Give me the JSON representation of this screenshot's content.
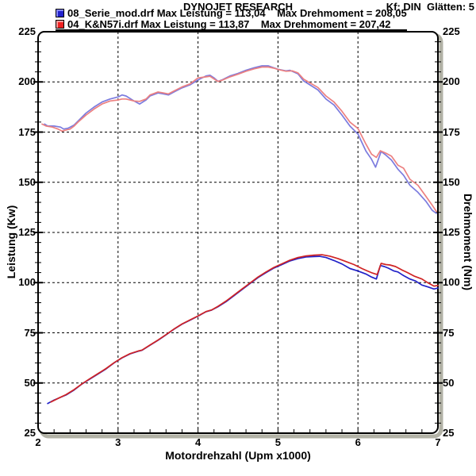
{
  "header": {
    "title": "DYNOJET RESEARCH",
    "settings": "Kf: DIN  Glätten: 5"
  },
  "legend": {
    "entries": [
      {
        "label": "08_Serie_mod.drf Max Leistung = 113,04    Max Drehmoment = 208,05",
        "swatch_color": "#2222cc",
        "underlined": false
      },
      {
        "label": "04_K&N57i.drf Max Leistung = 113,87    Max Drehmoment = 207,42",
        "swatch_color": "#ee2222",
        "underlined": true
      }
    ]
  },
  "colors": {
    "background": "#ffffff",
    "frame": "#000000",
    "grid": "#000000",
    "shadow": "#b2b2a6",
    "power_blue": "#2121c8",
    "power_red": "#d02424",
    "torque_blue": "#7b7bde",
    "torque_red": "#ec8080"
  },
  "chart_data": {
    "type": "line",
    "title": "DYNOJET RESEARCH",
    "xlabel": "Motordrehzahl (Upm x1000)",
    "ylabel_left": "Leistung (Kw)",
    "ylabel_right": "Drehmoment (Nm)",
    "xlim": [
      2,
      7
    ],
    "ylim": [
      25,
      225
    ],
    "xticks": [
      2,
      3,
      4,
      5,
      6,
      7
    ],
    "yticks": [
      25,
      50,
      75,
      100,
      125,
      150,
      175,
      200,
      225
    ],
    "x_minor_step": 0.2,
    "y_minor_step": 5,
    "grid": "dashed",
    "legend_position": "top-left",
    "series": [
      {
        "name": "08_Serie_mod.drf Drehmoment",
        "unit": "Nm",
        "max": "208,05",
        "color_key": "torque_blue",
        "points": [
          [
            2.08,
            179
          ],
          [
            2.12,
            178
          ],
          [
            2.2,
            178
          ],
          [
            2.28,
            177.5
          ],
          [
            2.32,
            176.5
          ],
          [
            2.38,
            177
          ],
          [
            2.45,
            178.5
          ],
          [
            2.5,
            180.5
          ],
          [
            2.6,
            184.5
          ],
          [
            2.7,
            187.5
          ],
          [
            2.8,
            190
          ],
          [
            2.9,
            191.5
          ],
          [
            3.0,
            192.5
          ],
          [
            3.05,
            193.5
          ],
          [
            3.1,
            193
          ],
          [
            3.2,
            190.5
          ],
          [
            3.27,
            189
          ],
          [
            3.35,
            191
          ],
          [
            3.4,
            193
          ],
          [
            3.5,
            194.5
          ],
          [
            3.57,
            194
          ],
          [
            3.63,
            193.5
          ],
          [
            3.7,
            195
          ],
          [
            3.8,
            197
          ],
          [
            3.9,
            198.5
          ],
          [
            4.0,
            201
          ],
          [
            4.1,
            203
          ],
          [
            4.15,
            203.3
          ],
          [
            4.2,
            202
          ],
          [
            4.25,
            200.3
          ],
          [
            4.3,
            201
          ],
          [
            4.4,
            203
          ],
          [
            4.5,
            204.2
          ],
          [
            4.6,
            205.8
          ],
          [
            4.7,
            207
          ],
          [
            4.8,
            208
          ],
          [
            4.88,
            208
          ],
          [
            4.95,
            207
          ],
          [
            5.0,
            206.3
          ],
          [
            5.1,
            205.5
          ],
          [
            5.15,
            205.8
          ],
          [
            5.25,
            204
          ],
          [
            5.32,
            200.5
          ],
          [
            5.4,
            198.5
          ],
          [
            5.5,
            196
          ],
          [
            5.6,
            191.5
          ],
          [
            5.7,
            188.5
          ],
          [
            5.8,
            183.5
          ],
          [
            5.9,
            178
          ],
          [
            6.0,
            174
          ],
          [
            6.1,
            165.5
          ],
          [
            6.17,
            161.5
          ],
          [
            6.22,
            157.5
          ],
          [
            6.29,
            165.3
          ],
          [
            6.35,
            163.5
          ],
          [
            6.42,
            161
          ],
          [
            6.5,
            156.5
          ],
          [
            6.57,
            153.5
          ],
          [
            6.65,
            148.5
          ],
          [
            6.75,
            145
          ],
          [
            6.85,
            140.5
          ],
          [
            6.93,
            136
          ],
          [
            6.98,
            134.5
          ]
        ]
      },
      {
        "name": "04_K&N57i.drf Drehmoment",
        "unit": "Nm",
        "max": "207,42",
        "color_key": "torque_red",
        "points": [
          [
            2.05,
            179
          ],
          [
            2.1,
            178
          ],
          [
            2.18,
            177.5
          ],
          [
            2.25,
            176.5
          ],
          [
            2.3,
            175.5
          ],
          [
            2.4,
            176.5
          ],
          [
            2.45,
            178
          ],
          [
            2.5,
            180
          ],
          [
            2.6,
            183.5
          ],
          [
            2.7,
            186.5
          ],
          [
            2.8,
            189
          ],
          [
            2.9,
            190.5
          ],
          [
            3.0,
            191
          ],
          [
            3.05,
            191.5
          ],
          [
            3.1,
            191.5
          ],
          [
            3.2,
            190.5
          ],
          [
            3.27,
            190.3
          ],
          [
            3.35,
            191.5
          ],
          [
            3.4,
            193.5
          ],
          [
            3.5,
            195
          ],
          [
            3.57,
            194.5
          ],
          [
            3.63,
            194
          ],
          [
            3.7,
            195.5
          ],
          [
            3.8,
            197.5
          ],
          [
            3.9,
            199
          ],
          [
            4.0,
            202
          ],
          [
            4.1,
            202.5
          ],
          [
            4.15,
            202.8
          ],
          [
            4.2,
            201.5
          ],
          [
            4.25,
            200.2
          ],
          [
            4.3,
            200.8
          ],
          [
            4.4,
            202.5
          ],
          [
            4.5,
            203.8
          ],
          [
            4.6,
            205.3
          ],
          [
            4.7,
            206.5
          ],
          [
            4.8,
            207.4
          ],
          [
            4.88,
            207.4
          ],
          [
            4.95,
            206.8
          ],
          [
            5.0,
            206.2
          ],
          [
            5.1,
            205.3
          ],
          [
            5.18,
            205.5
          ],
          [
            5.25,
            204.5
          ],
          [
            5.32,
            201.4
          ],
          [
            5.4,
            199.5
          ],
          [
            5.5,
            197.2
          ],
          [
            5.6,
            193
          ],
          [
            5.7,
            190
          ],
          [
            5.8,
            185.4
          ],
          [
            5.9,
            180
          ],
          [
            6.0,
            176.8
          ],
          [
            6.1,
            169
          ],
          [
            6.17,
            164
          ],
          [
            6.23,
            162.4
          ],
          [
            6.28,
            165.7
          ],
          [
            6.35,
            164.5
          ],
          [
            6.42,
            163
          ],
          [
            6.5,
            158.5
          ],
          [
            6.57,
            157
          ],
          [
            6.65,
            151.5
          ],
          [
            6.75,
            148.5
          ],
          [
            6.85,
            143
          ],
          [
            6.93,
            138.5
          ],
          [
            6.98,
            135.5
          ]
        ]
      },
      {
        "name": "08_Serie_mod.drf Leistung",
        "unit": "Kw",
        "max": "113,04",
        "color_key": "power_blue",
        "points": [
          [
            2.12,
            39.8
          ],
          [
            2.2,
            41.5
          ],
          [
            2.3,
            43.2
          ],
          [
            2.35,
            44
          ],
          [
            2.45,
            46.5
          ],
          [
            2.55,
            49.5
          ],
          [
            2.65,
            52
          ],
          [
            2.75,
            54.5
          ],
          [
            2.85,
            57
          ],
          [
            2.95,
            60
          ],
          [
            3.05,
            62.5
          ],
          [
            3.15,
            64.5
          ],
          [
            3.25,
            65.8
          ],
          [
            3.3,
            66.3
          ],
          [
            3.4,
            68.8
          ],
          [
            3.5,
            71.3
          ],
          [
            3.6,
            74
          ],
          [
            3.7,
            76.8
          ],
          [
            3.8,
            79.3
          ],
          [
            3.9,
            81.3
          ],
          [
            4.0,
            83.3
          ],
          [
            4.1,
            85.5
          ],
          [
            4.17,
            86.3
          ],
          [
            4.25,
            88
          ],
          [
            4.35,
            90.5
          ],
          [
            4.45,
            93.5
          ],
          [
            4.55,
            96.5
          ],
          [
            4.65,
            99.5
          ],
          [
            4.75,
            102.5
          ],
          [
            4.85,
            105
          ],
          [
            4.95,
            107.3
          ],
          [
            5.05,
            109
          ],
          [
            5.15,
            110.8
          ],
          [
            5.25,
            112
          ],
          [
            5.35,
            112.8
          ],
          [
            5.45,
            113
          ],
          [
            5.52,
            113.1
          ],
          [
            5.6,
            112.5
          ],
          [
            5.7,
            111
          ],
          [
            5.8,
            109.3
          ],
          [
            5.9,
            107
          ],
          [
            6.0,
            105.8
          ],
          [
            6.1,
            104.3
          ],
          [
            6.17,
            102.8
          ],
          [
            6.23,
            101.8
          ],
          [
            6.28,
            108.5
          ],
          [
            6.33,
            108
          ],
          [
            6.38,
            107.2
          ],
          [
            6.45,
            105.8
          ],
          [
            6.5,
            105.3
          ],
          [
            6.57,
            103.5
          ],
          [
            6.65,
            101.8
          ],
          [
            6.72,
            100.8
          ],
          [
            6.8,
            98.8
          ],
          [
            6.88,
            97.8
          ],
          [
            6.95,
            96.8
          ],
          [
            7.0,
            97.3
          ]
        ]
      },
      {
        "name": "04_K&N57i.drf Leistung",
        "unit": "Kw",
        "max": "113,87",
        "color_key": "power_red",
        "points": [
          [
            2.16,
            40.5
          ],
          [
            2.25,
            42.3
          ],
          [
            2.35,
            44.2
          ],
          [
            2.45,
            46.7
          ],
          [
            2.55,
            49.6
          ],
          [
            2.65,
            52.2
          ],
          [
            2.75,
            54.7
          ],
          [
            2.85,
            57.2
          ],
          [
            2.95,
            60.1
          ],
          [
            3.05,
            62.6
          ],
          [
            3.15,
            64.6
          ],
          [
            3.25,
            65.9
          ],
          [
            3.3,
            66.4
          ],
          [
            3.4,
            68.9
          ],
          [
            3.5,
            71.4
          ],
          [
            3.6,
            74.1
          ],
          [
            3.7,
            76.9
          ],
          [
            3.8,
            79.4
          ],
          [
            3.9,
            81.4
          ],
          [
            4.0,
            83.4
          ],
          [
            4.1,
            85.6
          ],
          [
            4.17,
            86.4
          ],
          [
            4.25,
            88.2
          ],
          [
            4.35,
            90.8
          ],
          [
            4.45,
            93.8
          ],
          [
            4.55,
            96.8
          ],
          [
            4.65,
            99.8
          ],
          [
            4.75,
            102.8
          ],
          [
            4.85,
            105.3
          ],
          [
            4.95,
            107.6
          ],
          [
            5.05,
            109.4
          ],
          [
            5.15,
            111.2
          ],
          [
            5.25,
            112.5
          ],
          [
            5.35,
            113.3
          ],
          [
            5.45,
            113.7
          ],
          [
            5.55,
            113.9
          ],
          [
            5.65,
            113.2
          ],
          [
            5.75,
            112
          ],
          [
            5.85,
            110.5
          ],
          [
            5.95,
            109
          ],
          [
            6.05,
            107
          ],
          [
            6.12,
            105.8
          ],
          [
            6.18,
            104.8
          ],
          [
            6.24,
            104
          ],
          [
            6.29,
            109.6
          ],
          [
            6.35,
            109
          ],
          [
            6.4,
            108.8
          ],
          [
            6.47,
            108
          ],
          [
            6.55,
            106.3
          ],
          [
            6.62,
            105
          ],
          [
            6.7,
            103.3
          ],
          [
            6.8,
            101.8
          ],
          [
            6.88,
            99.8
          ],
          [
            6.95,
            98.3
          ],
          [
            7.0,
            98.6
          ]
        ]
      }
    ]
  }
}
